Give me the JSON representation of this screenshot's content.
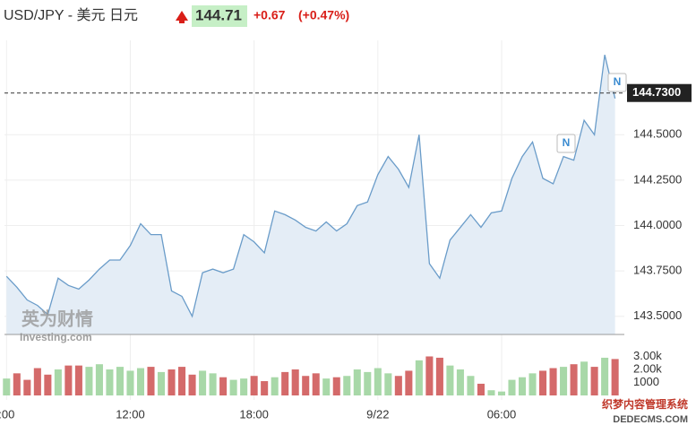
{
  "header": {
    "pair": "USD/JPY - 美元 日元",
    "price": "144.71",
    "change": "+0.67",
    "change_pct": "(+0.47%)"
  },
  "chart_data": [
    {
      "type": "area",
      "color": "#6a9cc9",
      "fill": "#e4edf6",
      "values": [
        143.72,
        143.66,
        143.59,
        143.56,
        143.51,
        143.71,
        143.67,
        143.65,
        143.7,
        143.76,
        143.81,
        143.81,
        143.89,
        144.01,
        143.95,
        143.95,
        143.64,
        143.61,
        143.5,
        143.74,
        143.76,
        143.74,
        143.76,
        143.95,
        143.91,
        143.85,
        144.08,
        144.06,
        144.03,
        143.99,
        143.97,
        144.02,
        143.97,
        144.01,
        144.11,
        144.13,
        144.28,
        144.38,
        144.31,
        144.21,
        144.5,
        143.79,
        143.71,
        143.92,
        143.99,
        144.06,
        143.99,
        144.07,
        144.08,
        144.26,
        144.38,
        144.46,
        144.26,
        144.23,
        144.38,
        144.36,
        144.58,
        144.5,
        144.94,
        144.7
      ],
      "xlim": [
        -0.2,
        59.9
      ],
      "xticks": [
        {
          "value": 0,
          "label": ":00"
        },
        {
          "value": 12,
          "label": "12:00"
        },
        {
          "value": 24,
          "label": "18:00"
        },
        {
          "value": 36,
          "label": "9/22"
        },
        {
          "value": 48,
          "label": "06:00"
        }
      ],
      "ylim": [
        143.4,
        145.02
      ],
      "yticks": [
        {
          "value": 143.5,
          "label": "143.5000"
        },
        {
          "value": 143.75,
          "label": "143.7500"
        },
        {
          "value": 144.0,
          "label": "144.0000"
        },
        {
          "value": 144.25,
          "label": "144.2500"
        },
        {
          "value": 144.5,
          "label": "144.5000"
        }
      ],
      "last_price": {
        "value": 144.73,
        "label": "144.7300"
      },
      "grid": true
    },
    {
      "type": "bar",
      "up_color": "#a8d8a8",
      "down_color": "#d46a6a",
      "values": [
        1300,
        1700,
        1200,
        2100,
        1600,
        2000,
        2300,
        2300,
        2200,
        2400,
        2000,
        2200,
        1900,
        2100,
        2200,
        1800,
        2000,
        2200,
        1600,
        1900,
        1700,
        1400,
        1200,
        1300,
        1500,
        1100,
        1400,
        1800,
        2000,
        1500,
        1700,
        1300,
        1400,
        1500,
        2000,
        1800,
        2100,
        1700,
        1500,
        1900,
        2700,
        3000,
        2900,
        2300,
        2000,
        1500,
        900,
        400,
        300,
        1200,
        1400,
        1700,
        1900,
        2100,
        2200,
        2400,
        2600,
        2200,
        2900,
        2800
      ],
      "ylim": [
        0,
        3930
      ],
      "yticks": [
        {
          "value": 3000,
          "label": "3.00k"
        },
        {
          "value": 2000,
          "label": "2.00k"
        },
        1000
      ]
    }
  ],
  "watermark": {
    "brand": "英为财情",
    "site": "Investing.com"
  },
  "footer_watermark": {
    "cn": "织梦内容管理系统",
    "en": "DEDECMS.COM"
  }
}
